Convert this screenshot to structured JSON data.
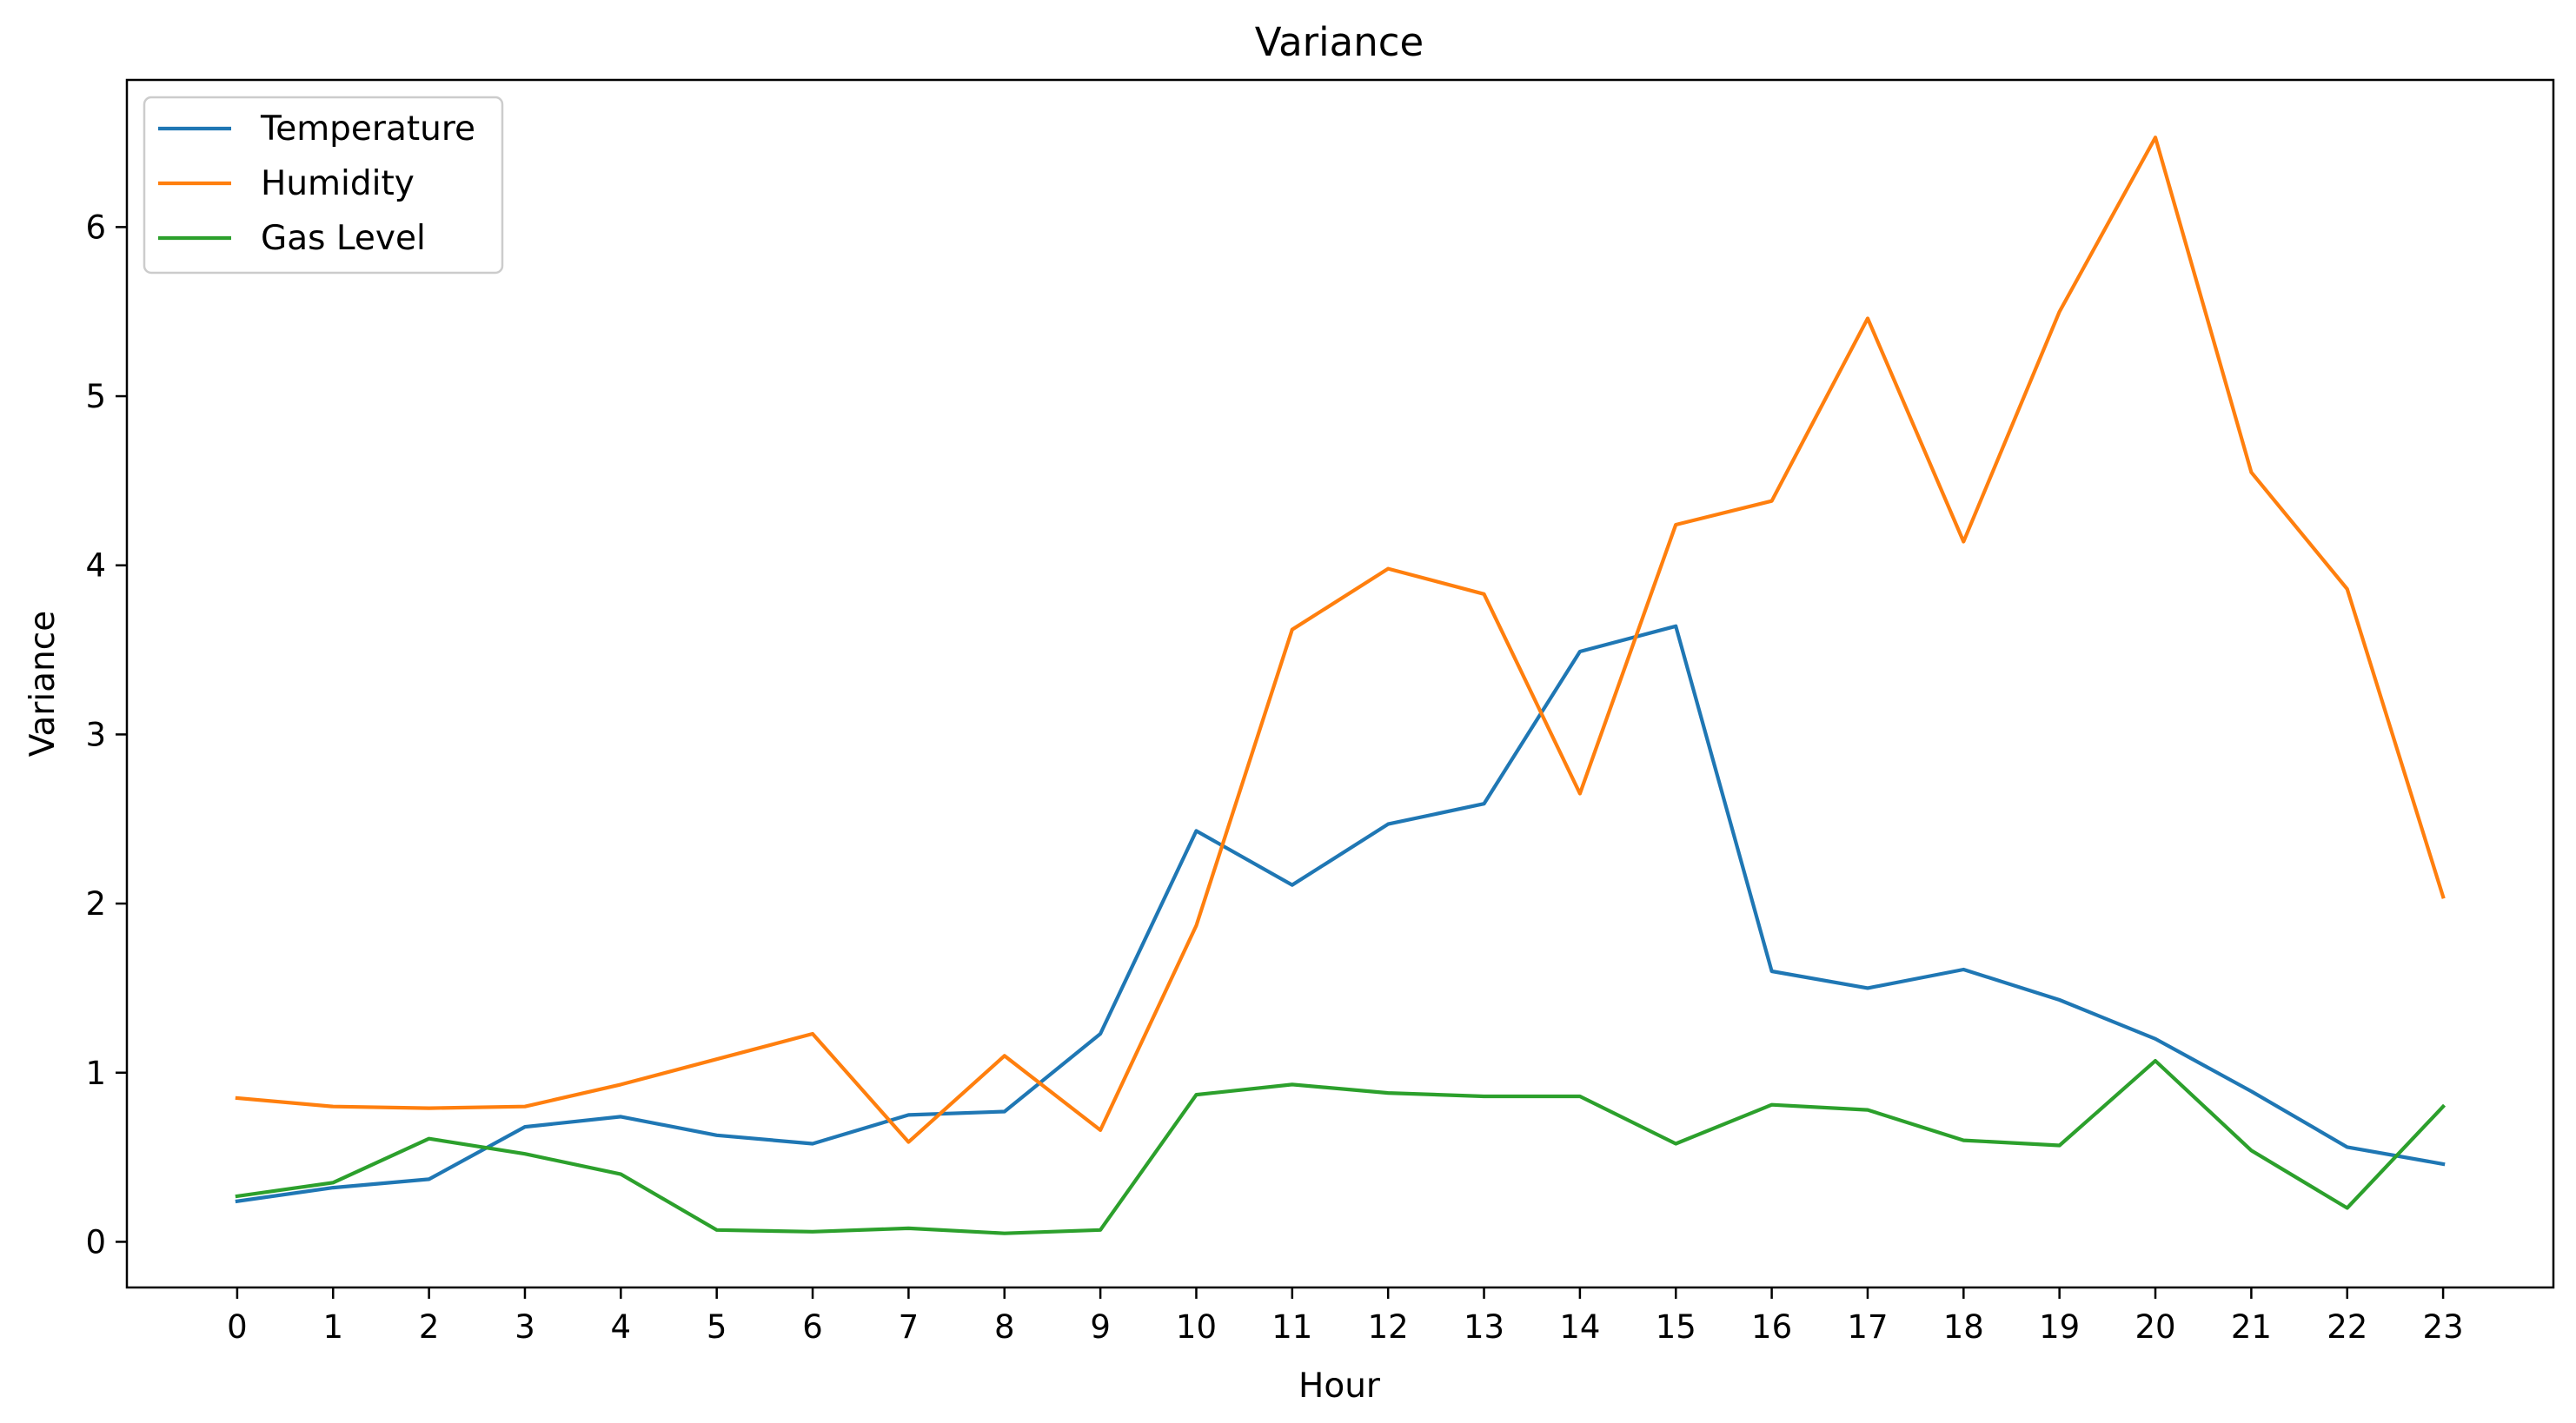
{
  "chart_data": {
    "type": "line",
    "title": "Variance",
    "xlabel": "Hour",
    "ylabel": "Variance",
    "x": [
      0,
      1,
      2,
      3,
      4,
      5,
      6,
      7,
      8,
      9,
      10,
      11,
      12,
      13,
      14,
      15,
      16,
      17,
      18,
      19,
      20,
      21,
      22,
      23
    ],
    "xlim": [
      -1.15,
      24.15
    ],
    "ylim": [
      -0.27,
      6.87
    ],
    "yticks": [
      0,
      1,
      2,
      3,
      4,
      5,
      6
    ],
    "grid": false,
    "legend_position": "top-left",
    "series": [
      {
        "name": "Temperature",
        "color": "#1f77b4",
        "values": [
          0.24,
          0.32,
          0.37,
          0.68,
          0.74,
          0.63,
          0.58,
          0.75,
          0.77,
          1.23,
          2.43,
          2.11,
          2.47,
          2.59,
          3.49,
          3.64,
          1.6,
          1.5,
          1.61,
          1.43,
          1.2,
          0.89,
          0.56,
          0.46
        ]
      },
      {
        "name": "Humidity",
        "color": "#ff7f0e",
        "values": [
          0.85,
          0.8,
          0.79,
          0.8,
          0.93,
          1.08,
          1.23,
          0.59,
          1.1,
          0.66,
          1.87,
          3.62,
          3.98,
          3.83,
          2.65,
          4.24,
          4.38,
          5.46,
          4.14,
          5.5,
          6.53,
          4.55,
          3.86,
          2.04
        ]
      },
      {
        "name": "Gas Level",
        "color": "#2ca02c",
        "values": [
          0.27,
          0.35,
          0.61,
          0.52,
          0.4,
          0.07,
          0.06,
          0.08,
          0.05,
          0.07,
          0.87,
          0.93,
          0.88,
          0.86,
          0.86,
          0.58,
          0.81,
          0.78,
          0.6,
          0.57,
          1.07,
          0.54,
          0.2,
          0.8
        ]
      }
    ]
  }
}
